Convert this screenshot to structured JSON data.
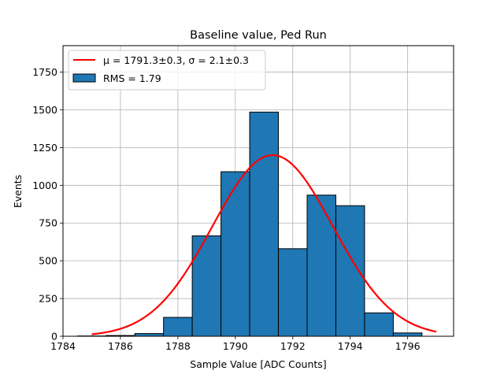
{
  "chart_data": {
    "type": "bar",
    "title": "Baseline value, Ped Run",
    "xlabel": "Sample Value [ADC Counts]",
    "ylabel": "Events",
    "xlim": [
      1784,
      1797.6
    ],
    "ylim": [
      0,
      1925
    ],
    "xticks": [
      1784,
      1786,
      1788,
      1790,
      1792,
      1794,
      1796
    ],
    "yticks": [
      0,
      250,
      500,
      750,
      1000,
      1250,
      1500,
      1750
    ],
    "grid": true,
    "legend_position": "upper-left",
    "histogram": {
      "name": "RMS = 1.79",
      "bin_edges": [
        1784.5,
        1785.5,
        1786.5,
        1787.5,
        1788.5,
        1789.5,
        1790.5,
        1791.5,
        1792.5,
        1793.5,
        1794.5,
        1795.5,
        1796.5
      ],
      "values": [
        2,
        5,
        18,
        125,
        665,
        1090,
        1485,
        580,
        935,
        865,
        155,
        22
      ],
      "color": "#1f77b4"
    },
    "fit": {
      "name": "μ = 1791.3±0.3, σ = 2.1±0.3",
      "type": "gaussian",
      "mu": 1791.3,
      "sigma": 2.1,
      "amplitude": 1200,
      "x_range": [
        1785,
        1797
      ],
      "color": "#ff0000"
    }
  }
}
